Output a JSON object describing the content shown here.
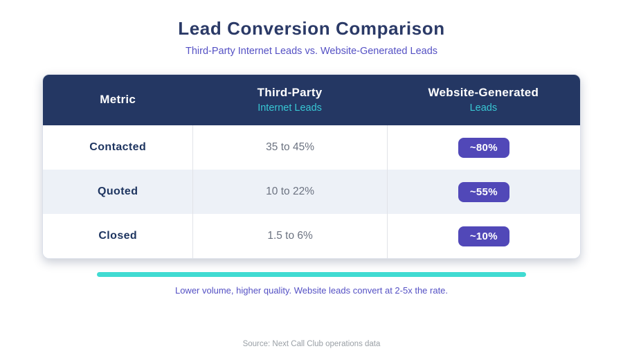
{
  "header": {
    "title": "Lead Conversion Comparison",
    "subtitle": "Third-Party Internet Leads vs. Website-Generated Leads"
  },
  "table": {
    "columns": [
      {
        "title": "Metric",
        "subtitle": ""
      },
      {
        "title": "Third-Party",
        "subtitle": "Internet Leads"
      },
      {
        "title": "Website-Generated",
        "subtitle": "Leads"
      }
    ],
    "rows": [
      {
        "metric": "Contacted",
        "third_party": "35 to 45%",
        "website_badge": "~80%"
      },
      {
        "metric": "Quoted",
        "third_party": "10 to 22%",
        "website_badge": "~55%"
      },
      {
        "metric": "Closed",
        "third_party": "1.5 to 6%",
        "website_badge": "~10%"
      }
    ]
  },
  "footer": {
    "note": "Lower volume, higher quality. Website leads convert at 2-5x the rate.",
    "source": "Source: Next Call Club operations data"
  },
  "colors": {
    "title_navy": "#2b3a67",
    "subtitle_purple": "#5450c4",
    "header_bg_navy": "#243763",
    "header_sub_teal": "#38c6d3",
    "badge_indigo": "#5148b8",
    "accent_teal": "#41dbd2",
    "row_alt_bg": "#edf1f7",
    "range_gray": "#6b7280",
    "source_gray": "#9aa0a6"
  },
  "chart_data": {
    "type": "table",
    "title": "Lead Conversion Comparison",
    "subtitle": "Third-Party Internet Leads vs. Website-Generated Leads",
    "categories": [
      "Contacted",
      "Quoted",
      "Closed"
    ],
    "series": [
      {
        "name": "Third-Party Internet Leads",
        "values": [
          "35 to 45%",
          "10 to 22%",
          "1.5 to 6%"
        ]
      },
      {
        "name": "Website-Generated Leads",
        "values": [
          "~80%",
          "~55%",
          "~10%"
        ]
      }
    ],
    "annotation": "Lower volume, higher quality. Website leads convert at 2-5x the rate.",
    "source": "Source: Next Call Club operations data",
    "legend_position": "none",
    "grid": false
  }
}
